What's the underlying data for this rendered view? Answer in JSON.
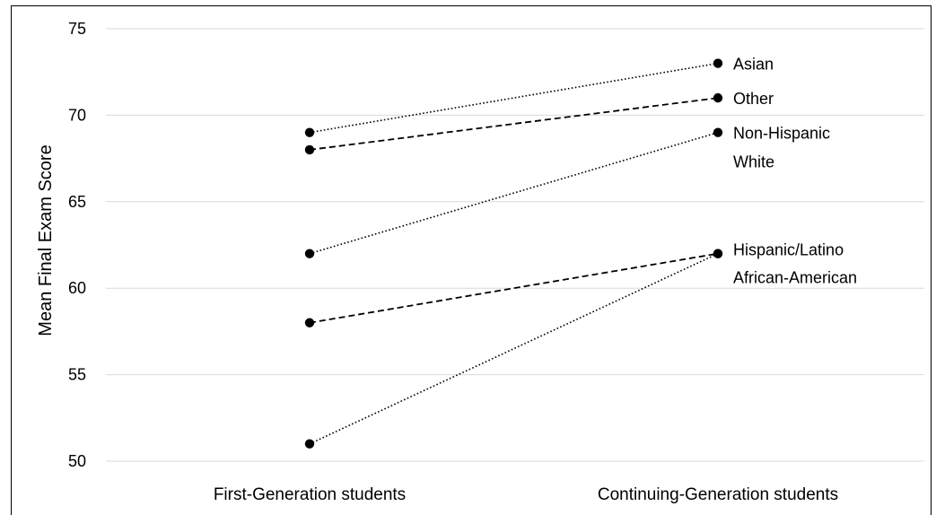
{
  "chart_data": {
    "type": "line",
    "title": "",
    "xlabel": "",
    "ylabel": "Mean Final Exam Score",
    "categories": [
      "First-Generation students",
      "Continuing-Generation students"
    ],
    "ylim": [
      50,
      75
    ],
    "yticks": [
      "50",
      "55",
      "60",
      "65",
      "70",
      "75"
    ],
    "grid": true,
    "legend": "none",
    "series": [
      {
        "name": "Asian",
        "label_lines": [
          "Asian"
        ],
        "values": [
          69,
          73
        ],
        "dash": "dotted",
        "color": "#000000"
      },
      {
        "name": "Other",
        "label_lines": [
          "Other"
        ],
        "values": [
          68,
          71
        ],
        "dash": "dashed",
        "color": "#000000"
      },
      {
        "name": "Non-Hispanic White",
        "label_lines": [
          "Non-Hispanic",
          "White"
        ],
        "values": [
          62,
          69
        ],
        "dash": "dotted",
        "color": "#000000"
      },
      {
        "name": "Hispanic/Latino",
        "label_lines": [
          "Hispanic/Latino"
        ],
        "values": [
          58,
          62
        ],
        "dash": "dashed",
        "color": "#000000"
      },
      {
        "name": "African-American",
        "label_lines": [
          "African-American"
        ],
        "values": [
          51,
          62
        ],
        "dash": "dotted",
        "color": "#000000"
      }
    ]
  }
}
